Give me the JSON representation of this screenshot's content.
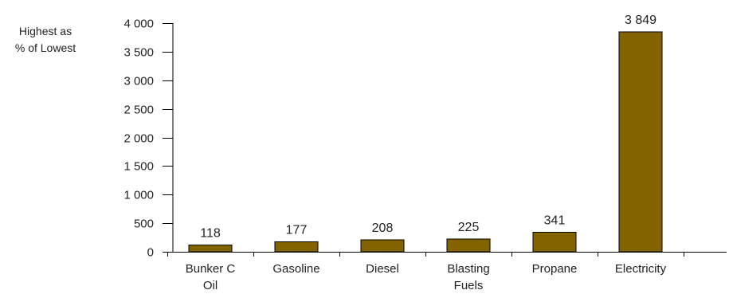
{
  "chart_data": {
    "type": "bar",
    "ylabel_lines": [
      "Highest as",
      "% of Lowest"
    ],
    "categories": [
      [
        "Bunker C",
        "Oil"
      ],
      [
        "Gasoline"
      ],
      [
        "Diesel"
      ],
      [
        "Blasting",
        "Fuels"
      ],
      [
        "Propane"
      ],
      [
        "Electricity"
      ]
    ],
    "values": [
      118,
      177,
      208,
      225,
      341,
      3849
    ],
    "value_labels": [
      "118",
      "177",
      "208",
      "225",
      "341",
      "3 849"
    ],
    "yticks": [
      0,
      500,
      1000,
      1500,
      2000,
      2500,
      3000,
      3500,
      4000
    ],
    "ytick_labels": [
      "0",
      "500",
      "1 000",
      "1 500",
      "2 000",
      "2 500",
      "3 000",
      "3 500",
      "4 000"
    ],
    "ylim": [
      0,
      4000
    ],
    "grid": false,
    "bar_color": "#826300"
  }
}
